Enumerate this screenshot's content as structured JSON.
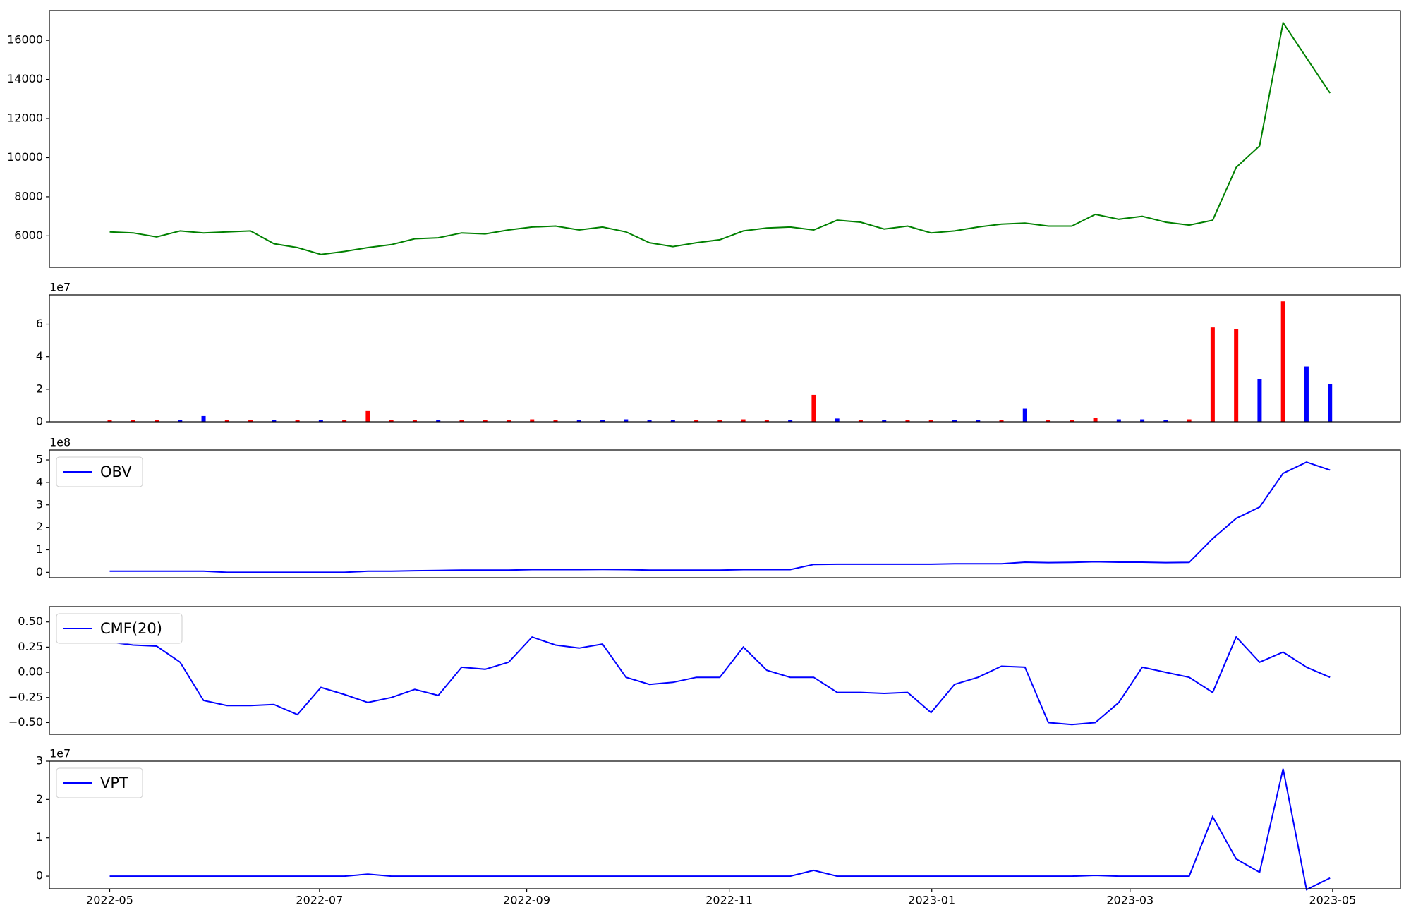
{
  "chart_data": [
    {
      "type": "line",
      "color": "green",
      "values": [
        6200,
        6150,
        5950,
        6250,
        6150,
        6200,
        6250,
        5600,
        5400,
        5050,
        5200,
        5400,
        5550,
        5850,
        5900,
        6150,
        6100,
        6300,
        6450,
        6500,
        6300,
        6450,
        6200,
        5650,
        5450,
        5650,
        5800,
        6250,
        6400,
        6450,
        6300,
        6800,
        6700,
        6350,
        6500,
        6150,
        6250,
        6450,
        6600,
        6650,
        6500,
        6500,
        7100,
        6850,
        7000,
        6700,
        6550,
        6800,
        9500,
        10600,
        16900,
        15100,
        13300
      ],
      "xlim": [
        -2.57,
        55.0
      ],
      "ylim": [
        4390,
        17520
      ],
      "yticks": [
        6000,
        8000,
        10000,
        12000,
        14000,
        16000
      ]
    },
    {
      "type": "bar",
      "offset_label": "1e7",
      "values": [
        0.1,
        0.1,
        0.1,
        0.1,
        0.35,
        0.1,
        0.1,
        0.1,
        0.1,
        0.1,
        0.1,
        0.7,
        0.1,
        0.1,
        0.1,
        0.1,
        0.1,
        0.1,
        0.15,
        0.1,
        0.1,
        0.1,
        0.15,
        0.1,
        0.1,
        0.1,
        0.1,
        0.15,
        0.1,
        0.1,
        1.65,
        0.2,
        0.1,
        0.1,
        0.1,
        0.1,
        0.1,
        0.1,
        0.1,
        0.8,
        0.1,
        0.1,
        0.25,
        0.15,
        0.15,
        0.1,
        0.15,
        5.8,
        5.7,
        2.6,
        7.4,
        3.4,
        2.3
      ],
      "colors": [
        "red",
        "red",
        "red",
        "blue",
        "blue",
        "red",
        "red",
        "blue",
        "red",
        "blue",
        "red",
        "red",
        "red",
        "red",
        "blue",
        "red",
        "red",
        "red",
        "red",
        "red",
        "blue",
        "blue",
        "blue",
        "blue",
        "blue",
        "red",
        "red",
        "red",
        "red",
        "blue",
        "red",
        "blue",
        "red",
        "blue",
        "red",
        "red",
        "blue",
        "blue",
        "red",
        "blue",
        "red",
        "red",
        "red",
        "blue",
        "blue",
        "blue",
        "red",
        "red",
        "red",
        "blue",
        "red",
        "blue",
        "blue"
      ],
      "xlim": [
        -2.57,
        55.0
      ],
      "ylim": [
        0,
        7.8
      ],
      "yticks": [
        0,
        2,
        4,
        6
      ]
    },
    {
      "type": "line",
      "offset_label": "1e8",
      "legend": "upper left",
      "series": [
        {
          "name": "OBV",
          "color": "blue",
          "values": [
            0.05,
            0.05,
            0.05,
            0.05,
            0.05,
            0.0,
            0.0,
            0.0,
            0.0,
            0.0,
            0.0,
            0.05,
            0.05,
            0.07,
            0.08,
            0.1,
            0.1,
            0.1,
            0.12,
            0.12,
            0.12,
            0.13,
            0.12,
            0.1,
            0.1,
            0.1,
            0.1,
            0.12,
            0.12,
            0.12,
            0.35,
            0.36,
            0.36,
            0.36,
            0.36,
            0.36,
            0.38,
            0.38,
            0.38,
            0.45,
            0.43,
            0.44,
            0.47,
            0.45,
            0.45,
            0.43,
            0.44,
            1.5,
            2.4,
            2.9,
            4.4,
            4.9,
            4.55
          ]
        }
      ],
      "xlim": [
        -2.57,
        55.0
      ],
      "ylim": [
        -0.24,
        5.44
      ],
      "yticks": [
        0,
        1,
        2,
        3,
        4,
        5
      ]
    },
    {
      "type": "line",
      "legend": "upper left",
      "series": [
        {
          "name": "CMF(20)",
          "color": "blue",
          "values": [
            0.3,
            0.27,
            0.26,
            0.1,
            -0.28,
            -0.33,
            -0.33,
            -0.32,
            -0.42,
            -0.15,
            -0.22,
            -0.3,
            -0.25,
            -0.17,
            -0.23,
            0.05,
            0.03,
            0.1,
            0.35,
            0.27,
            0.24,
            0.28,
            -0.05,
            -0.12,
            -0.1,
            -0.05,
            -0.05,
            0.25,
            0.02,
            -0.05,
            -0.05,
            -0.2,
            -0.2,
            -0.21,
            -0.2,
            -0.4,
            -0.12,
            -0.05,
            0.06,
            0.05,
            -0.5,
            -0.52,
            -0.5,
            -0.3,
            0.05,
            0.0,
            -0.05,
            -0.2,
            0.35,
            0.1,
            0.2,
            0.05,
            -0.05
          ]
        }
      ],
      "xlim": [
        -2.57,
        55.0
      ],
      "ylim": [
        -0.616,
        0.652
      ],
      "yticks": [
        {
          "value": -0.5,
          "label": "−0.50"
        },
        {
          "value": -0.25,
          "label": "−0.25"
        },
        {
          "value": 0,
          "label": "0.00"
        },
        {
          "value": 0.25,
          "label": "0.25"
        },
        {
          "value": 0.5,
          "label": "0.50"
        }
      ]
    },
    {
      "type": "line",
      "offset_label": "1e7",
      "legend": "upper left",
      "series": [
        {
          "name": "VPT",
          "color": "blue",
          "values": [
            0,
            0,
            0,
            0,
            0,
            0,
            0,
            0,
            0,
            0,
            0,
            0.05,
            0,
            0,
            0,
            0,
            0,
            0,
            0,
            0,
            0,
            0,
            0,
            0,
            0,
            0,
            0,
            0,
            0,
            0,
            0.15,
            0,
            0,
            0,
            0,
            0,
            0,
            0,
            0,
            0,
            0,
            0,
            0.02,
            0,
            0,
            0,
            0,
            1.55,
            0.45,
            0.1,
            2.8,
            -0.35,
            -0.05
          ]
        }
      ],
      "xlim": [
        -2.57,
        55.0
      ],
      "ylim": [
        -0.33,
        3.0
      ],
      "yticks": [
        0,
        1,
        2,
        3
      ],
      "xticks": [
        {
          "value": 0,
          "label": "2022-05"
        },
        {
          "value": 8.94,
          "label": "2022-07"
        },
        {
          "value": 17.77,
          "label": "2022-09"
        },
        {
          "value": 26.4,
          "label": "2022-11"
        },
        {
          "value": 35.03,
          "label": "2023-01"
        },
        {
          "value": 43.48,
          "label": "2023-03"
        },
        {
          "value": 52.11,
          "label": "2023-05"
        }
      ]
    }
  ]
}
